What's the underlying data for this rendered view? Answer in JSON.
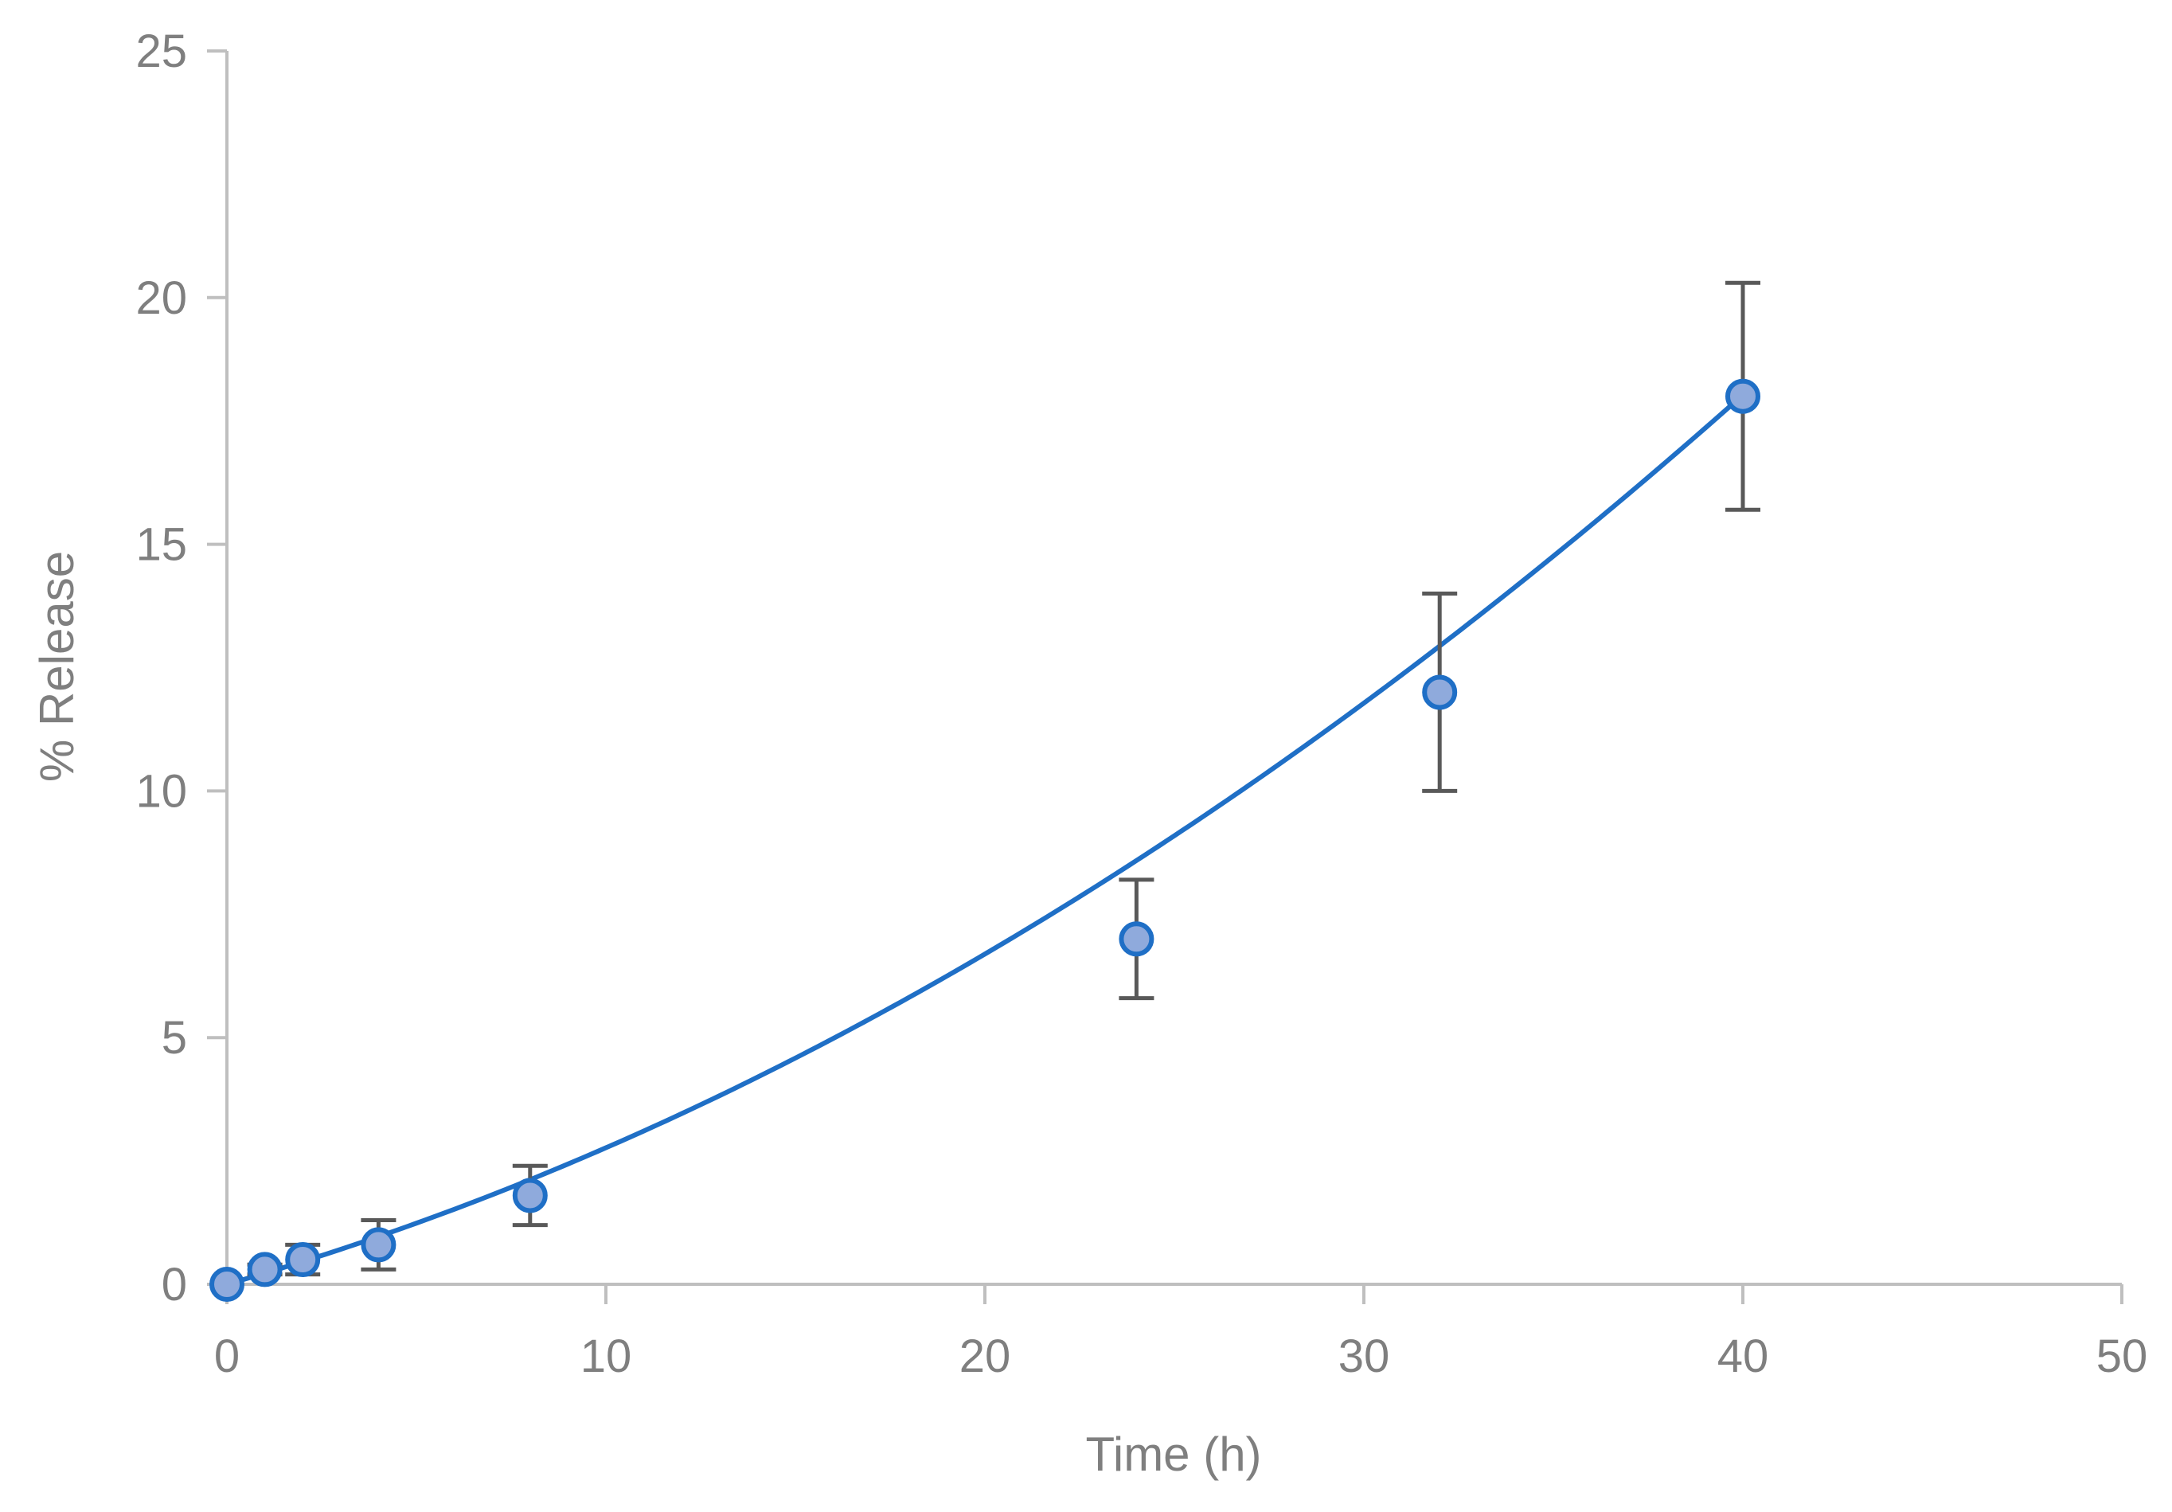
{
  "chart_data": {
    "type": "scatter",
    "title": "",
    "xlabel": "Time (h)",
    "ylabel": "% Release",
    "xlim": [
      0,
      50
    ],
    "ylim": [
      0,
      25
    ],
    "x_ticks": [
      0,
      10,
      20,
      30,
      40,
      50
    ],
    "y_ticks": [
      0,
      5,
      10,
      15,
      20,
      25
    ],
    "grid": false,
    "legend": "none",
    "series": [
      {
        "x": [
          0,
          1,
          2,
          4,
          8,
          24,
          32,
          40
        ],
        "y": [
          0,
          0.3,
          0.5,
          0.8,
          1.8,
          7.0,
          12.0,
          18.0
        ],
        "error": [
          0,
          0.1,
          0.3,
          0.5,
          0.6,
          1.2,
          2.0,
          2.3
        ],
        "marker_fill": "#8faadc",
        "marker_edge": "#1f6fc6",
        "error_color": "#595959"
      }
    ],
    "trendline": {
      "type": "polynomial",
      "coefficients": [
        0.0058,
        0.2187,
        0.0
      ],
      "x_range": [
        0,
        40
      ],
      "color": "#1f6fc6"
    },
    "axis_color": "#bfbfbf",
    "text_color": "#7f7f7f"
  }
}
